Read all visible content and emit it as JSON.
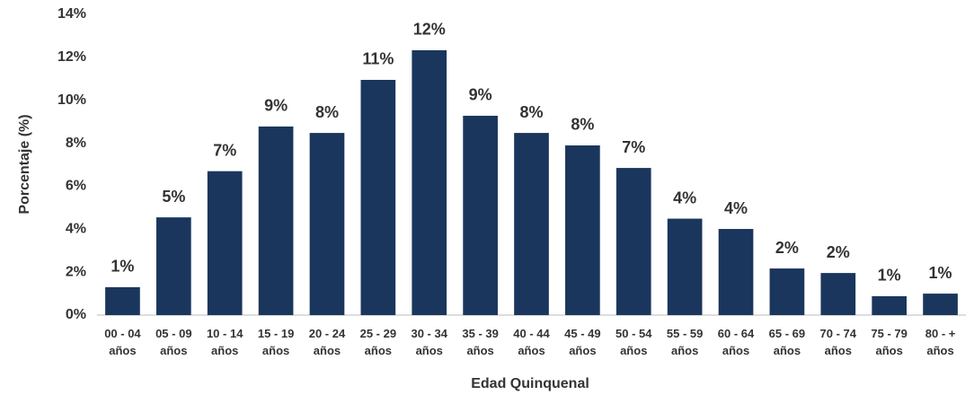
{
  "chart_data": {
    "type": "bar",
    "y_label": "Porcentaje (%)",
    "x_label": "Edad Quinquenal",
    "categories": [
      "00 - 04 años",
      "05 - 09 años",
      "10 - 14 años",
      "15 - 19 años",
      "20 - 24 años",
      "25 - 29 años",
      "30 - 34 años",
      "35 - 39 años",
      "40 - 44 años",
      "45 - 49 años",
      "50 - 54 años",
      "55 - 59 años",
      "60 - 64 años",
      "65 - 69 años",
      "70 - 74 años",
      "75 - 79 años",
      "80 - + años"
    ],
    "values": [
      1.3,
      4.55,
      6.7,
      8.78,
      8.48,
      10.95,
      12.33,
      9.28,
      8.48,
      7.9,
      6.85,
      4.49,
      4.01,
      2.17,
      1.96,
      0.88,
      1.0
    ],
    "value_labels": [
      "1%",
      "5%",
      "7%",
      "9%",
      "8%",
      "11%",
      "12%",
      "9%",
      "8%",
      "8%",
      "7%",
      "4%",
      "4%",
      "2%",
      "2%",
      "1%",
      "1%"
    ],
    "color": "#1b365d",
    "ylim": [
      0,
      14
    ],
    "yticks": [
      {
        "value": 0,
        "label": "0%"
      },
      {
        "value": 2,
        "label": "2%"
      },
      {
        "value": 4,
        "label": "4%"
      },
      {
        "value": 6,
        "label": "6%"
      },
      {
        "value": 8,
        "label": "8%"
      },
      {
        "value": 10,
        "label": "10%"
      },
      {
        "value": 12,
        "label": "12%"
      },
      {
        "value": 14,
        "label": "14%"
      }
    ],
    "grid": false
  }
}
